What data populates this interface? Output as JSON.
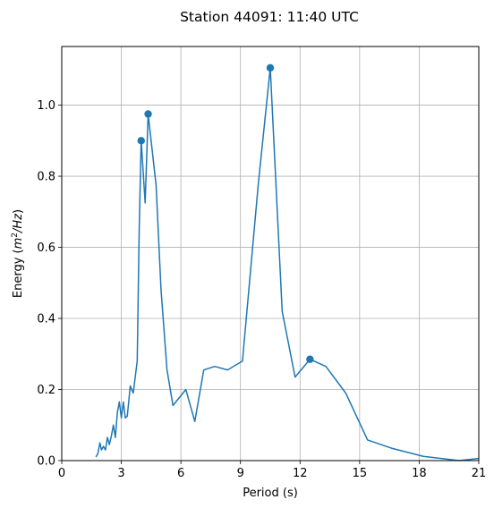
{
  "chart_data": {
    "type": "line",
    "title": "Station 44091: 11:40 UTC",
    "xlabel": "Period (s)",
    "ylabel": "Energy",
    "ylabel_unit_num": "m",
    "ylabel_unit_exp": "2",
    "ylabel_unit_den": "Hz",
    "xlim": [
      0,
      21
    ],
    "ylim": [
      0,
      1.165
    ],
    "xticks": [
      0,
      3,
      6,
      9,
      12,
      15,
      18,
      21
    ],
    "xtick_labels": [
      "0",
      "3",
      "6",
      "9",
      "12",
      "15",
      "18",
      "21"
    ],
    "yticks": [
      0.0,
      0.2,
      0.4,
      0.6,
      0.8,
      1.0
    ],
    "ytick_labels": [
      "0.0",
      "0.2",
      "0.4",
      "0.6",
      "0.8",
      "1.0"
    ],
    "grid": true,
    "color": "#1f77b4",
    "series": [
      {
        "x": [
          1.72,
          1.82,
          1.92,
          2.0,
          2.1,
          2.2,
          2.3,
          2.4,
          2.5,
          2.6,
          2.7,
          2.8,
          2.9,
          3.0,
          3.1,
          3.2,
          3.3,
          3.45,
          3.6,
          3.8,
          3.9,
          4.0,
          4.2,
          4.35,
          4.75,
          5.0,
          5.3,
          5.6,
          6.25,
          6.7,
          7.15,
          7.7,
          8.35,
          9.1,
          9.9,
          10.5,
          11.1,
          11.75,
          12.5,
          13.3,
          14.3,
          15.4,
          16.6,
          18.2,
          20.0,
          21.0
        ],
        "y": [
          0.01,
          0.02,
          0.05,
          0.03,
          0.04,
          0.03,
          0.065,
          0.045,
          0.07,
          0.1,
          0.065,
          0.135,
          0.165,
          0.12,
          0.165,
          0.12,
          0.125,
          0.21,
          0.19,
          0.28,
          0.65,
          0.9,
          0.725,
          0.975,
          0.775,
          0.48,
          0.255,
          0.155,
          0.2,
          0.11,
          0.255,
          0.265,
          0.255,
          0.28,
          0.78,
          1.105,
          0.42,
          0.235,
          0.285,
          0.265,
          0.19,
          0.058,
          0.035,
          0.012,
          0.0,
          0.006
        ]
      }
    ],
    "markers": [
      {
        "x": 4.0,
        "y": 0.9
      },
      {
        "x": 4.35,
        "y": 0.975
      },
      {
        "x": 10.5,
        "y": 1.105
      },
      {
        "x": 12.5,
        "y": 0.285
      }
    ]
  }
}
